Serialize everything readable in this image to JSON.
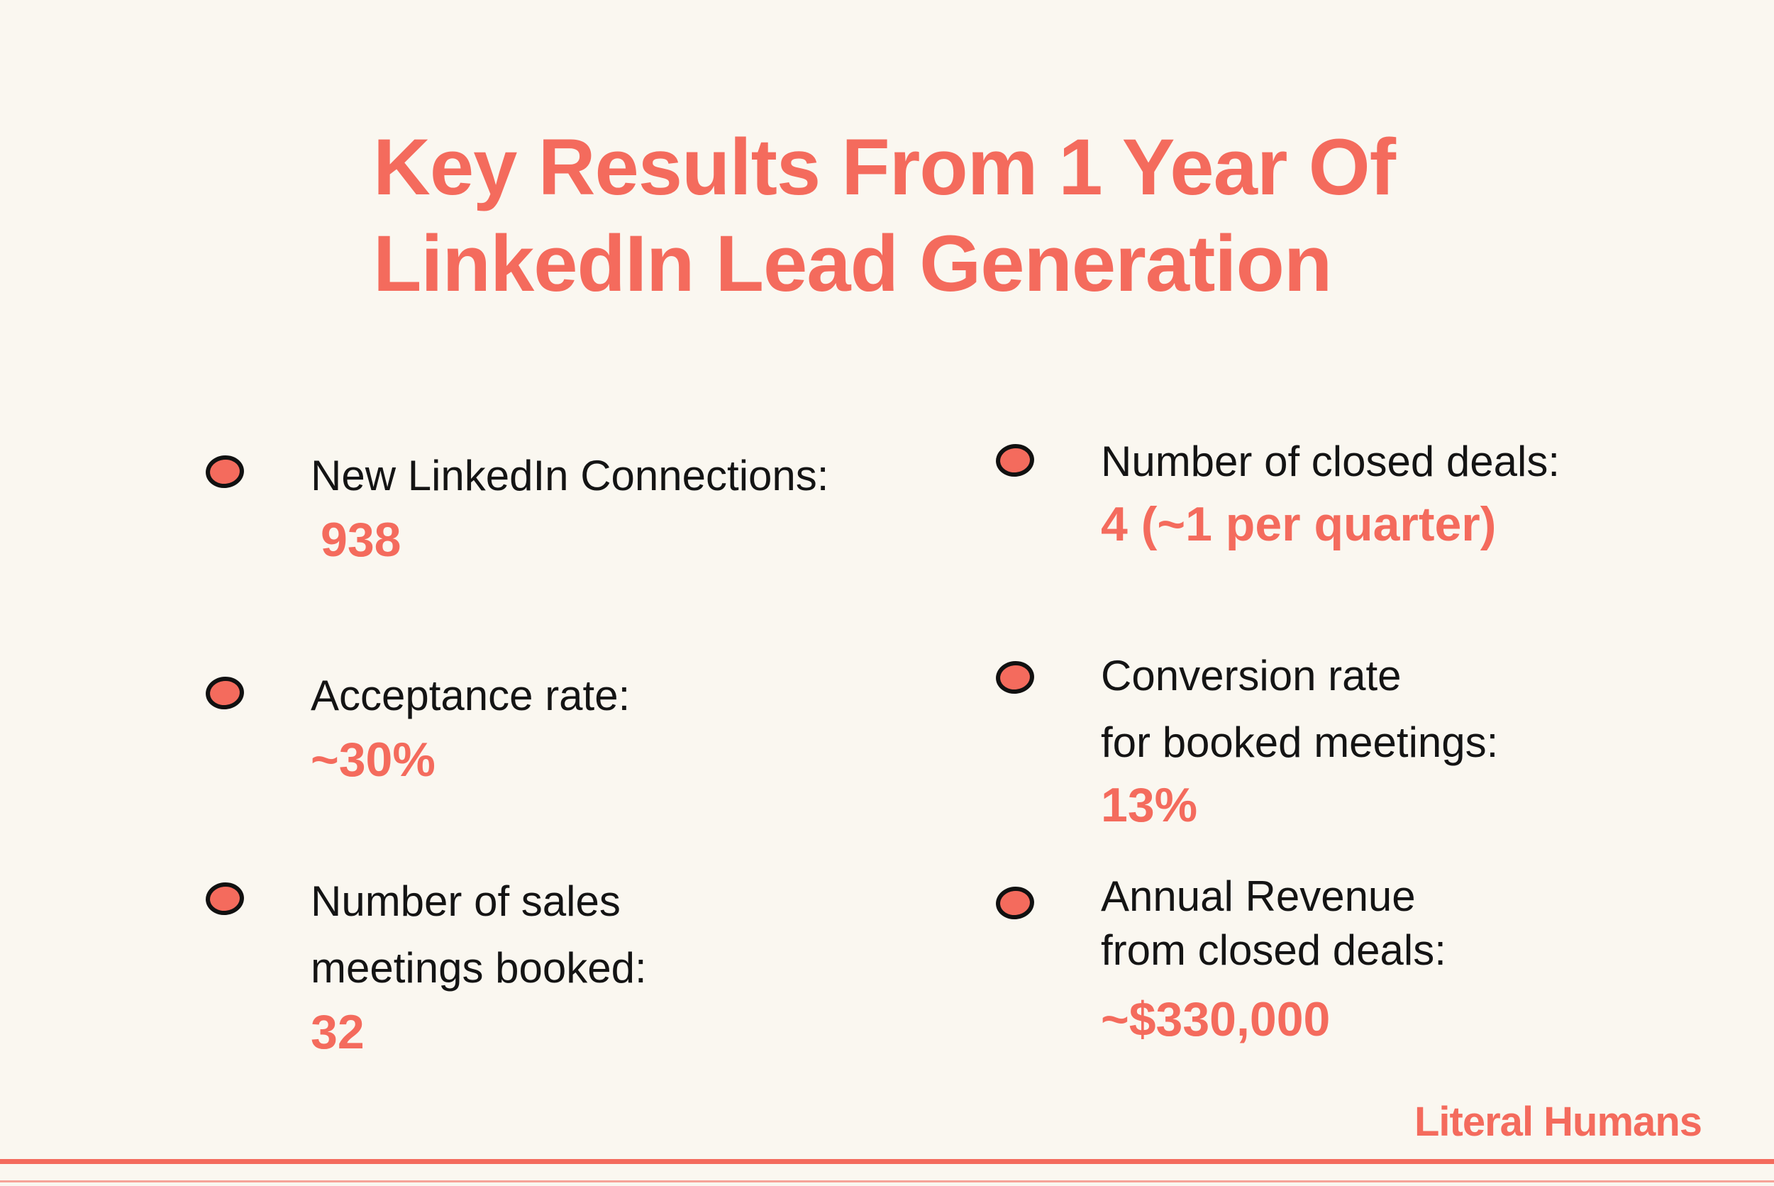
{
  "title": {
    "line1": "Key Results From 1 Year Of",
    "line2": "LinkedIn Lead Generation"
  },
  "metrics": {
    "connections": {
      "label": "New LinkedIn Connections:",
      "value": "938"
    },
    "acceptance": {
      "label": "Acceptance rate:",
      "value": "~30%"
    },
    "meetings": {
      "label_line1": "Number of sales",
      "label_line2": "meetings booked:",
      "value": "32"
    },
    "deals": {
      "label": "Number of closed deals:",
      "value": "4 (~1 per quarter)"
    },
    "conversion": {
      "label_line1": "Conversion rate",
      "label_line2": "for booked meetings:",
      "value": "13%"
    },
    "revenue": {
      "label_line1": "Annual Revenue",
      "label_line2": "from closed deals:",
      "value": "~$330,000"
    }
  },
  "brand": "Literal Humans",
  "colors": {
    "accent": "#F46B5D",
    "background": "#FAF7F0",
    "text": "#141414"
  },
  "icons": {
    "bullet": "bullet-dot-icon"
  }
}
